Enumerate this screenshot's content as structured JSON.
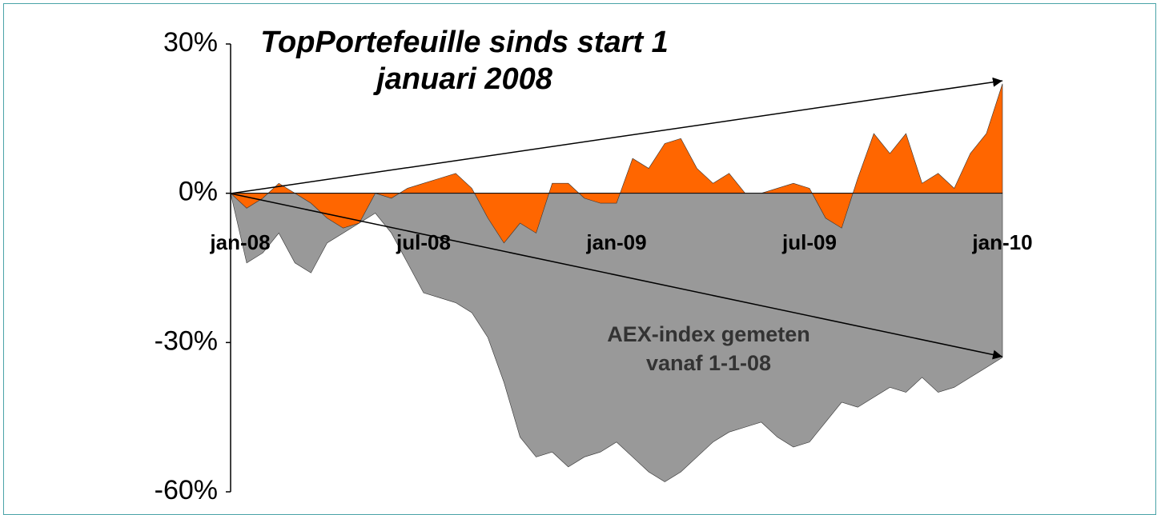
{
  "chart_data": {
    "type": "area",
    "title": "TopPortefeuille sinds start 1 januari 2008",
    "annotations": [
      "AEX-index gemeten vanaf 1-1-08"
    ],
    "categories": [
      "jan-08",
      null,
      null,
      null,
      null,
      null,
      null,
      null,
      null,
      null,
      null,
      null,
      "jul-08",
      null,
      null,
      null,
      null,
      null,
      null,
      null,
      null,
      null,
      null,
      null,
      "jan-09",
      null,
      null,
      null,
      null,
      null,
      null,
      null,
      null,
      null,
      null,
      null,
      "jul-09",
      null,
      null,
      null,
      null,
      null,
      null,
      null,
      null,
      null,
      null,
      null,
      "jan-10"
    ],
    "series": [
      {
        "color": "#999999",
        "values": [
          0,
          -14,
          -12,
          -8,
          -14,
          -16,
          -10,
          -8,
          -6,
          -4,
          -8,
          -14,
          -20,
          -21,
          -22,
          -24,
          -29,
          -38,
          -49,
          -53,
          -52,
          -55,
          -53,
          -52,
          -50,
          -53,
          -56,
          -58,
          -56,
          -53,
          -50,
          -48,
          -47,
          -46,
          -49,
          -51,
          -50,
          -46,
          -42,
          -43,
          -41,
          -39,
          -40,
          -37,
          -40,
          -39,
          -37,
          -35,
          -33
        ]
      },
      {
        "color": "#ff6600",
        "values": [
          0,
          -3,
          -1,
          2,
          0,
          -2,
          -5,
          -7,
          -6,
          0,
          -1,
          1,
          2,
          3,
          4,
          1,
          -5,
          -10,
          -6,
          -8,
          2,
          2,
          -1,
          -2,
          -2,
          7,
          5,
          10,
          11,
          5,
          2,
          4,
          0,
          0,
          1,
          2,
          1,
          -5,
          -7,
          3,
          12,
          8,
          12,
          2,
          4,
          1,
          8,
          12,
          22
        ]
      }
    ],
    "ylim": [
      -60,
      30
    ],
    "yticks": [
      {
        "value": 30,
        "label": "30%"
      },
      {
        "value": 0,
        "label": "0%"
      },
      {
        "value": -30,
        "label": "-30%"
      },
      {
        "value": -60,
        "label": "-60%"
      }
    ]
  }
}
